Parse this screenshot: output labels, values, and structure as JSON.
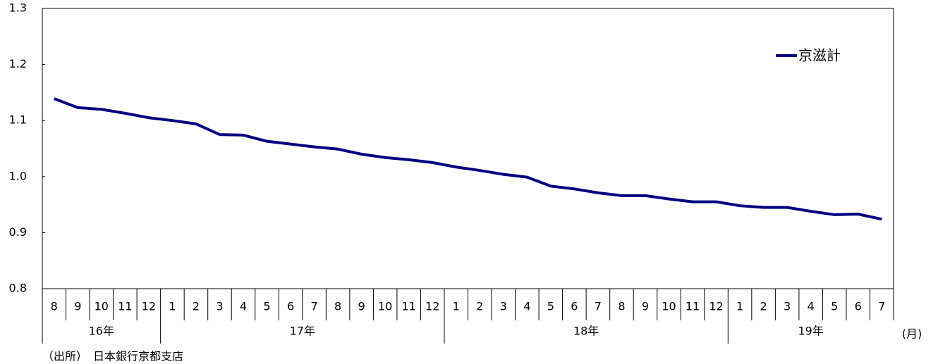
{
  "chart_data": {
    "type": "line",
    "categories": [
      "8",
      "9",
      "10",
      "11",
      "12",
      "1",
      "2",
      "3",
      "4",
      "5",
      "6",
      "7",
      "8",
      "9",
      "10",
      "11",
      "12",
      "1",
      "2",
      "3",
      "4",
      "5",
      "6",
      "7",
      "8",
      "9",
      "10",
      "11",
      "12",
      "1",
      "2",
      "3",
      "4",
      "5",
      "6",
      "7"
    ],
    "years": [
      "16年",
      "17年",
      "18年",
      "19年"
    ],
    "x_unit": "(月)",
    "series": [
      {
        "name": "京滋計",
        "color": "#000080",
        "values": [
          1.139,
          1.123,
          1.12,
          1.113,
          1.105,
          1.1,
          1.094,
          1.075,
          1.074,
          1.063,
          1.058,
          1.053,
          1.049,
          1.04,
          1.034,
          1.03,
          1.025,
          1.017,
          1.011,
          1.004,
          0.999,
          0.983,
          0.978,
          0.971,
          0.966,
          0.966,
          0.96,
          0.955,
          0.955,
          0.948,
          0.945,
          0.945,
          0.938,
          0.932,
          0.933,
          0.924
        ]
      }
    ],
    "ylim": [
      0.8,
      1.3
    ],
    "yticks": [
      {
        "value": 0.8,
        "label": "0.8"
      },
      {
        "value": 0.9,
        "label": "0.9"
      },
      {
        "value": 1.0,
        "label": "1.0"
      },
      {
        "value": 1.1,
        "label": "1.1"
      },
      {
        "value": 1.2,
        "label": "1.2"
      },
      {
        "value": 1.3,
        "label": "1.3"
      }
    ],
    "source": "（出所）　日本銀行京都支店"
  }
}
